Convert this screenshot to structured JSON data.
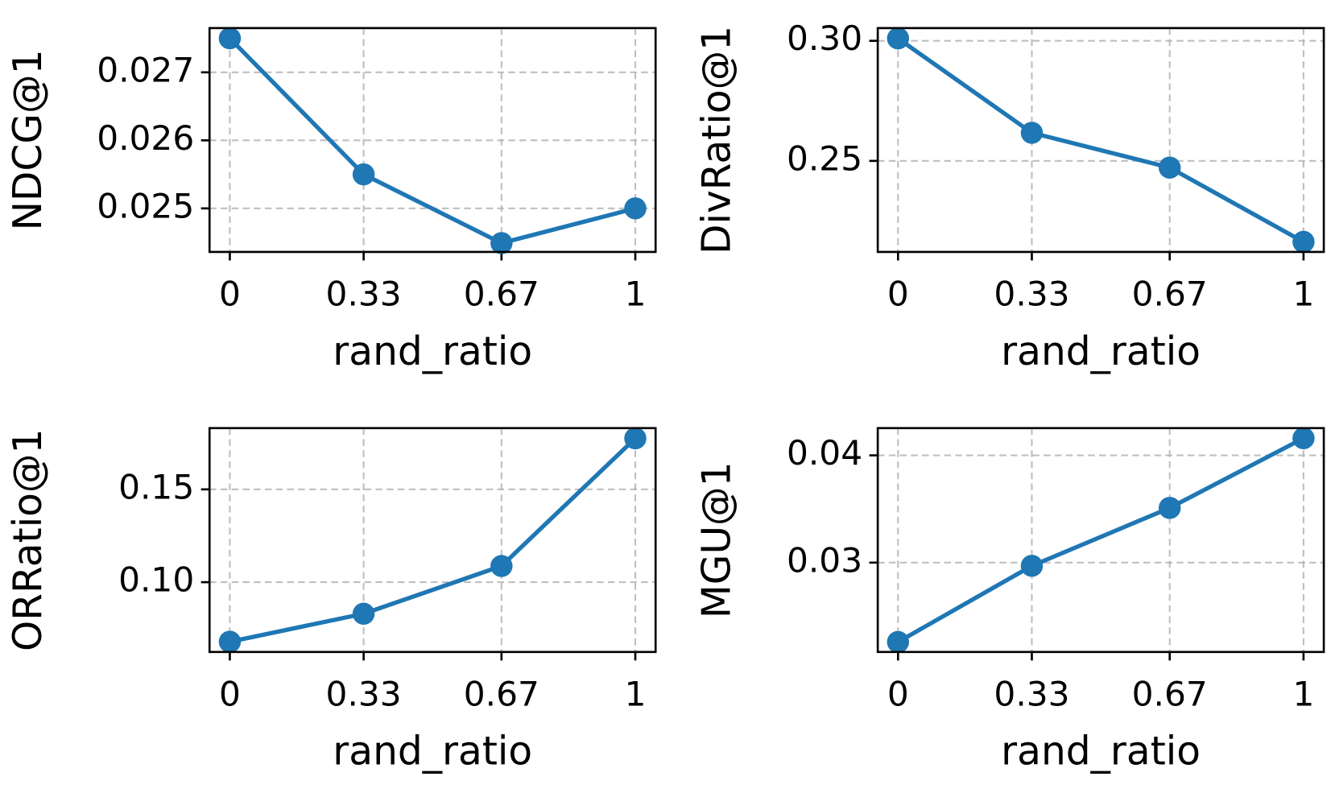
{
  "chart_data": [
    {
      "type": "line",
      "xlabel": "rand_ratio",
      "ylabel": "NDCG@1",
      "x": [
        0,
        0.33,
        0.67,
        1
      ],
      "values": [
        0.0275,
        0.0255,
        0.02449,
        0.025
      ],
      "color": "#1f77b4",
      "xlim": [
        -0.05,
        1.05
      ],
      "xticks": [
        0,
        0.33,
        0.67,
        1
      ],
      "ylim": [
        0.02436,
        0.02765
      ],
      "yticks": [
        0.025,
        0.026,
        0.027
      ],
      "grid": true
    },
    {
      "type": "line",
      "xlabel": "rand_ratio",
      "ylabel": "DivRatio@1",
      "x": [
        0,
        0.33,
        0.67,
        1
      ],
      "values": [
        0.301,
        0.2617,
        0.2472,
        0.2163
      ],
      "color": "#1f77b4",
      "xlim": [
        -0.05,
        1.05
      ],
      "xticks": [
        0,
        0.33,
        0.67,
        1
      ],
      "ylim": [
        0.2121,
        0.3053
      ],
      "yticks": [
        0.25,
        {
          "value": 0.3,
          "label": "0.30"
        }
      ],
      "grid": true
    },
    {
      "type": "line",
      "xlabel": "rand_ratio",
      "ylabel": "ORRatio@1",
      "x": [
        0,
        0.33,
        0.67,
        1
      ],
      "values": [
        0.0679,
        0.083,
        0.1087,
        0.1775
      ],
      "color": "#1f77b4",
      "xlim": [
        -0.05,
        1.05
      ],
      "xticks": [
        0,
        0.33,
        0.67,
        1
      ],
      "ylim": [
        0.0624,
        0.183
      ],
      "yticks": [
        {
          "value": 0.1,
          "label": "0.10"
        },
        0.15
      ],
      "grid": true
    },
    {
      "type": "line",
      "xlabel": "rand_ratio",
      "ylabel": "MGU@1",
      "x": [
        0,
        0.33,
        0.67,
        1
      ],
      "values": [
        0.0226,
        0.0297,
        0.0351,
        0.0416
      ],
      "color": "#1f77b4",
      "xlim": [
        -0.05,
        1.05
      ],
      "xticks": [
        0,
        0.33,
        0.67,
        1
      ],
      "ylim": [
        0.02167,
        0.04254
      ],
      "yticks": [
        0.03,
        0.04
      ],
      "grid": true
    }
  ]
}
